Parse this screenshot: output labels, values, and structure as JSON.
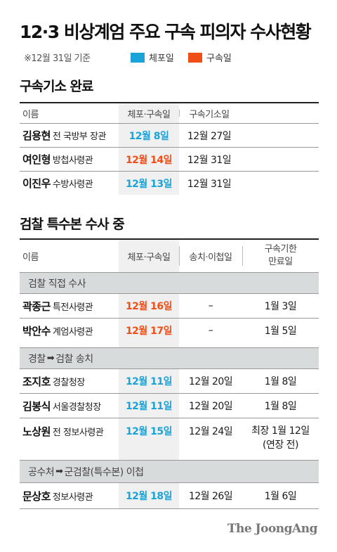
{
  "title": "12·3 비상계엄 주요 구속 피의자 수사현황",
  "legend": {
    "note": "※12월 31일 기준",
    "arrest_label": "체포일",
    "detain_label": "구속일",
    "arrest_color": "#1aa3d9",
    "detain_color": "#f04e17"
  },
  "section1": {
    "title": "구속기소 완료",
    "headers": {
      "name": "이름",
      "arrest": "체포·구속일",
      "indict": "구속기소일"
    },
    "rows": [
      {
        "name": "김용현",
        "role": "전 국방부 장관",
        "date": "12월 8일",
        "type": "arrest",
        "indict": "12월 27일"
      },
      {
        "name": "여인형",
        "role": "방첩사령관",
        "date": "12월 14일",
        "type": "detain",
        "indict": "12월 31일"
      },
      {
        "name": "이진우",
        "role": "수방사령관",
        "date": "12월 13일",
        "type": "arrest",
        "indict": "12월 31일"
      }
    ]
  },
  "section2": {
    "title": "검찰 특수본 수사 중",
    "headers": {
      "name": "이름",
      "arrest": "체포·구속일",
      "transfer": "송치·이첩일",
      "expiry_line1": "구속기한",
      "expiry_line2": "만료일"
    },
    "groups": [
      {
        "label_a": "검찰 직접 수사",
        "label_b": "",
        "rows": [
          {
            "name": "곽종근",
            "role": "특전사령관",
            "date": "12월 16일",
            "type": "detain",
            "transfer": "–",
            "expiry": "1월 3일",
            "expiry_note": ""
          },
          {
            "name": "박안수",
            "role": "계엄사령관",
            "date": "12월 17일",
            "type": "detain",
            "transfer": "–",
            "expiry": "1월 5일",
            "expiry_note": ""
          }
        ]
      },
      {
        "label_a": "경찰",
        "label_b": "검찰 송치",
        "rows": [
          {
            "name": "조지호",
            "role": "경찰청장",
            "date": "12월 11일",
            "type": "arrest",
            "transfer": "12월 20일",
            "expiry": "1월 8일",
            "expiry_note": ""
          },
          {
            "name": "김봉식",
            "role": "서울경찰청장",
            "date": "12월 11일",
            "type": "arrest",
            "transfer": "12월 20일",
            "expiry": "1월 8일",
            "expiry_note": ""
          },
          {
            "name": "노상원",
            "role": "전 정보사령관",
            "date": "12월 15일",
            "type": "arrest",
            "transfer": "12월 24일",
            "expiry": "최장 1월 12일",
            "expiry_note": "(연장 전)"
          }
        ]
      },
      {
        "label_a": "공수처",
        "label_b": "군검찰(특수본) 이첩",
        "rows": [
          {
            "name": "문상호",
            "role": "정보사령관",
            "date": "12월 18일",
            "type": "arrest",
            "transfer": "12월 26일",
            "expiry": "1월 6일",
            "expiry_note": ""
          }
        ]
      }
    ]
  },
  "footer": "The JoongAng"
}
